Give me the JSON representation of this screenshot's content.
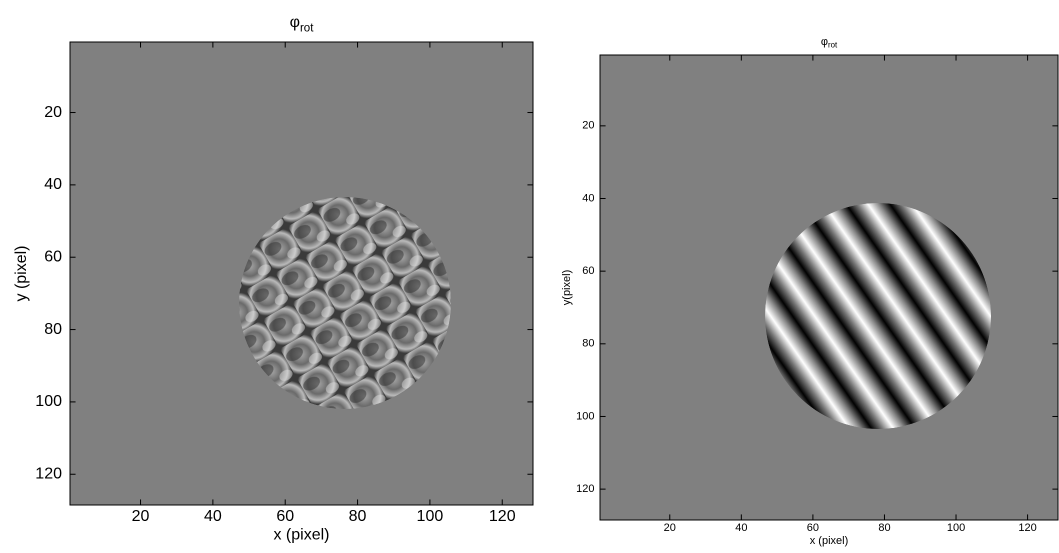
{
  "chart_data": [
    {
      "type": "image",
      "title": "φ",
      "title_sub": "rot",
      "xlabel": "x (pixel)",
      "ylabel": "y (pixel)",
      "xlim": [
        0.5,
        128.5
      ],
      "ylim": [
        0.5,
        128.5
      ],
      "y_reversed": true,
      "xticks": [
        20,
        40,
        60,
        80,
        100,
        120
      ],
      "yticks": [
        20,
        40,
        60,
        80,
        100,
        120
      ],
      "colormap": "gray"
    },
    {
      "type": "image",
      "title": "φ",
      "title_sub": "rot",
      "xlabel": "x (pixel)",
      "ylabel": "y(pixel)",
      "xlim": [
        0.5,
        128.5
      ],
      "ylim": [
        0.5,
        128.5
      ],
      "y_reversed": true,
      "xticks": [
        20,
        40,
        60,
        80,
        100,
        120
      ],
      "yticks": [
        20,
        40,
        60,
        80,
        100,
        120
      ],
      "colormap": "gray"
    }
  ]
}
